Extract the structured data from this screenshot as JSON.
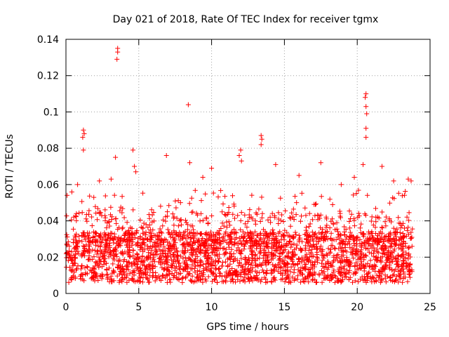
{
  "chart_data": {
    "type": "scatter",
    "title": "Day 021 of 2018, Rate Of TEC Index for receiver tgmx",
    "xlabel": "GPS time / hours",
    "ylabel": "ROTI / TECUs",
    "xlim": [
      0,
      25
    ],
    "ylim": [
      0,
      0.14
    ],
    "xticks": [
      0,
      5,
      10,
      15,
      20,
      25
    ],
    "yticks": [
      0,
      0.02,
      0.04,
      0.06,
      0.08,
      0.1,
      0.12,
      0.14
    ],
    "xtick_labels": [
      "0",
      "5",
      "10",
      "15",
      "20",
      "25"
    ],
    "ytick_labels": [
      "0",
      "0.02",
      "0.04",
      "0.06",
      "0.08",
      "0.1",
      "0.12",
      "0.14"
    ],
    "grid": true,
    "marker": "+",
    "series_color": "#ff0000",
    "series": [
      {
        "name": "ROTI",
        "description_of_bulk": "dense band of points from 0 to 23.8 h, mostly between 0.005 and 0.04 TECUs",
        "notable_points": [
          {
            "x": 3.55,
            "y": 0.135
          },
          {
            "x": 3.55,
            "y": 0.133
          },
          {
            "x": 3.5,
            "y": 0.129
          },
          {
            "x": 8.4,
            "y": 0.104
          },
          {
            "x": 20.6,
            "y": 0.11
          },
          {
            "x": 20.55,
            "y": 0.108
          },
          {
            "x": 20.6,
            "y": 0.103
          },
          {
            "x": 20.65,
            "y": 0.099
          },
          {
            "x": 20.6,
            "y": 0.091
          },
          {
            "x": 20.6,
            "y": 0.086
          },
          {
            "x": 1.2,
            "y": 0.09
          },
          {
            "x": 1.25,
            "y": 0.088
          },
          {
            "x": 1.15,
            "y": 0.086
          },
          {
            "x": 1.2,
            "y": 0.079
          },
          {
            "x": 13.4,
            "y": 0.087
          },
          {
            "x": 13.45,
            "y": 0.085
          },
          {
            "x": 13.4,
            "y": 0.082
          },
          {
            "x": 3.4,
            "y": 0.075
          },
          {
            "x": 4.6,
            "y": 0.079
          },
          {
            "x": 6.9,
            "y": 0.076
          },
          {
            "x": 12.0,
            "y": 0.079
          },
          {
            "x": 11.9,
            "y": 0.076
          },
          {
            "x": 12.05,
            "y": 0.073
          },
          {
            "x": 8.5,
            "y": 0.072
          },
          {
            "x": 17.5,
            "y": 0.072
          },
          {
            "x": 20.4,
            "y": 0.071
          },
          {
            "x": 14.4,
            "y": 0.071
          },
          {
            "x": 21.7,
            "y": 0.07
          },
          {
            "x": 10.0,
            "y": 0.069
          },
          {
            "x": 4.7,
            "y": 0.07
          },
          {
            "x": 4.8,
            "y": 0.067
          },
          {
            "x": 16.0,
            "y": 0.065
          },
          {
            "x": 23.5,
            "y": 0.063
          },
          {
            "x": 23.7,
            "y": 0.062
          },
          {
            "x": 0.8,
            "y": 0.06
          },
          {
            "x": 2.3,
            "y": 0.062
          },
          {
            "x": 3.1,
            "y": 0.063
          },
          {
            "x": 9.4,
            "y": 0.064
          },
          {
            "x": 18.9,
            "y": 0.06
          },
          {
            "x": 22.5,
            "y": 0.062
          },
          {
            "x": 19.8,
            "y": 0.064
          }
        ]
      }
    ]
  }
}
